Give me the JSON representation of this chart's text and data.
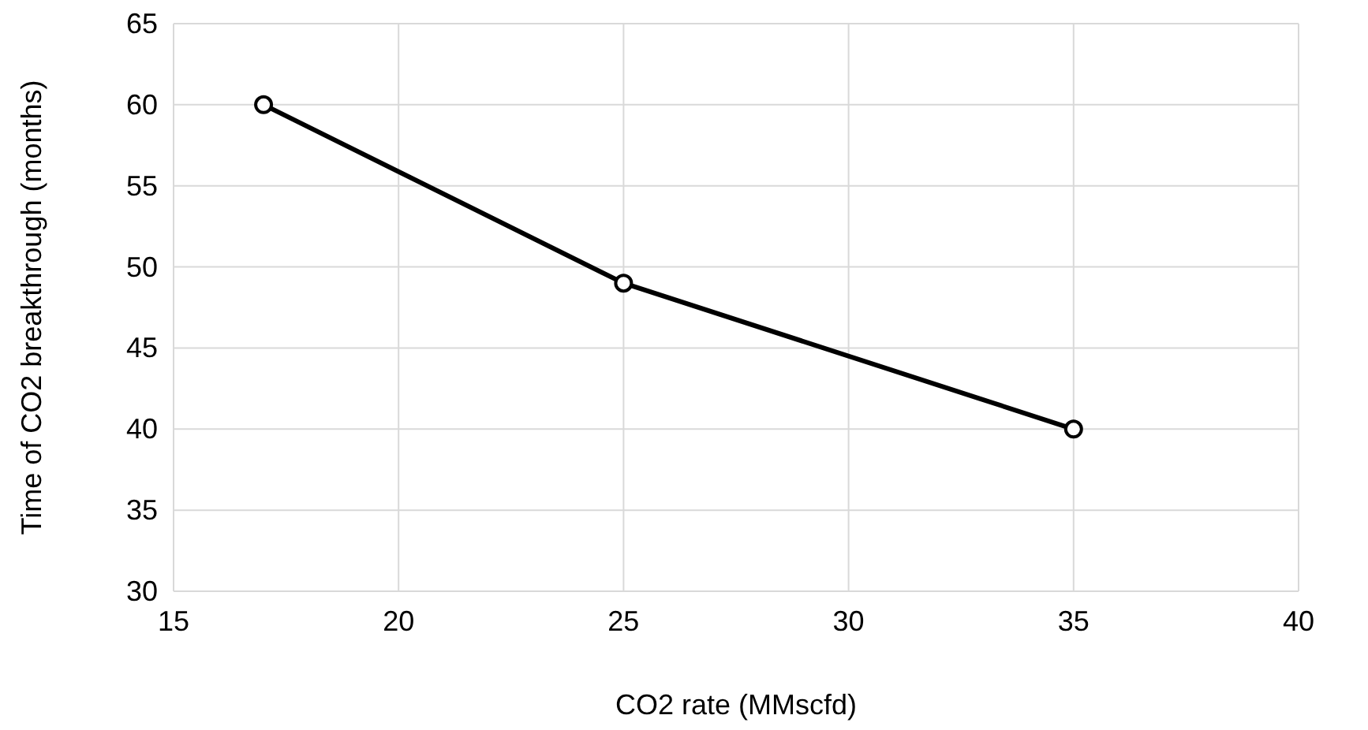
{
  "chart_data": {
    "type": "line",
    "xlabel": "CO2 rate (MMscfd)",
    "ylabel": "Time of CO2 breakthrough (months)",
    "x": [
      17,
      25,
      35
    ],
    "series": [
      {
        "color": "#000000",
        "values": [
          60,
          49,
          40
        ]
      }
    ],
    "xlim": [
      15,
      40
    ],
    "xticks": [
      15,
      20,
      25,
      30,
      35,
      40
    ],
    "ylim": [
      30,
      65
    ],
    "yticks": [
      30,
      35,
      40,
      45,
      50,
      55,
      60,
      65
    ],
    "grid": true,
    "marker": "circle",
    "line_style": "solid"
  }
}
